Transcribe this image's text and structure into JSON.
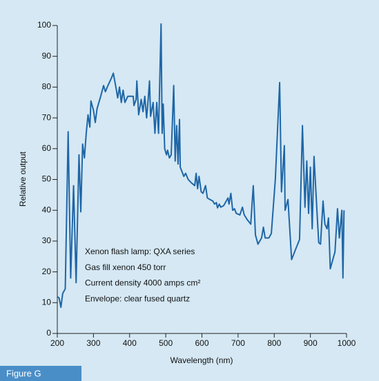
{
  "chart_data": {
    "type": "line",
    "ylabel": "Relative output",
    "xlabel": "Wavelength (nm)",
    "xlim": [
      200,
      1000
    ],
    "ylim": [
      0,
      100
    ],
    "xticks": [
      200,
      300,
      400,
      500,
      600,
      700,
      800,
      900,
      1000
    ],
    "yticks": [
      0,
      10,
      20,
      30,
      40,
      50,
      60,
      70,
      80,
      90,
      100
    ],
    "annotations": [
      "Xenon flash lamp: QXA series",
      "Gas fill xenon 450 torr",
      "Current density 4000 amps cm²",
      "Envelope: clear fused quartz"
    ],
    "series": [
      {
        "color": "#1f66a6",
        "x": [
          200,
          205,
          210,
          215,
          222,
          230,
          237,
          245,
          252,
          260,
          265,
          270,
          275,
          280,
          285,
          290,
          293,
          300,
          305,
          310,
          320,
          328,
          333,
          340,
          350,
          355,
          362,
          367,
          372,
          377,
          382,
          387,
          395,
          410,
          412,
          418,
          420,
          425,
          432,
          437,
          442,
          447,
          450,
          455,
          458,
          465,
          470,
          475,
          480,
          487,
          490,
          493,
          497,
          502,
          505,
          510,
          515,
          522,
          526,
          530,
          534,
          538,
          540,
          545,
          550,
          555,
          562,
          570,
          580,
          584,
          588,
          592,
          598,
          603,
          610,
          615,
          622,
          630,
          635,
          640,
          643,
          648,
          652,
          660,
          665,
          672,
          675,
          680,
          685,
          690,
          695,
          705,
          712,
          717,
          725,
          735,
          742,
          748,
          755,
          765,
          770,
          775,
          785,
          792,
          803,
          815,
          820,
          828,
          830,
          838,
          848,
          858,
          870,
          878,
          885,
          890,
          895,
          900,
          905,
          910,
          918,
          923,
          928,
          935,
          940,
          946,
          950,
          955,
          962,
          968,
          975,
          980,
          987,
          990,
          993
        ],
        "values": [
          12,
          11.5,
          8.5,
          13,
          14.5,
          65.5,
          18,
          48,
          16.5,
          58,
          39.5,
          61.5,
          57,
          65,
          71,
          67,
          75.5,
          72.5,
          68.5,
          73,
          77,
          80.5,
          78.5,
          80.5,
          83,
          84.5,
          80,
          76.5,
          80,
          75,
          79,
          75,
          77,
          77,
          74,
          76,
          82,
          71,
          76,
          72,
          77,
          70,
          74,
          82,
          70.5,
          75,
          65,
          75,
          65,
          100.5,
          65,
          74.5,
          60,
          58,
          59.5,
          57,
          58,
          80.5,
          56,
          67.5,
          55,
          69.5,
          54,
          52.5,
          51,
          52,
          50,
          49,
          48,
          52,
          47,
          51,
          46,
          45.5,
          48,
          44,
          43.5,
          43,
          42,
          42.5,
          40.8,
          42,
          41,
          41.5,
          42.5,
          44,
          42,
          45.5,
          40,
          40.5,
          39,
          38.5,
          41,
          38.5,
          37,
          35.5,
          48,
          32,
          29,
          31,
          34.5,
          31,
          31,
          32.5,
          50,
          81.5,
          46,
          61,
          40,
          43.5,
          24,
          27,
          30.5,
          67.5,
          41,
          56,
          39,
          54,
          34,
          57.5,
          40,
          29.5,
          29,
          43,
          35.5,
          34,
          37.5,
          21,
          24,
          26.5,
          40.5,
          31,
          40,
          18,
          40
        ]
      }
    ]
  },
  "figure_label": "Figure G"
}
